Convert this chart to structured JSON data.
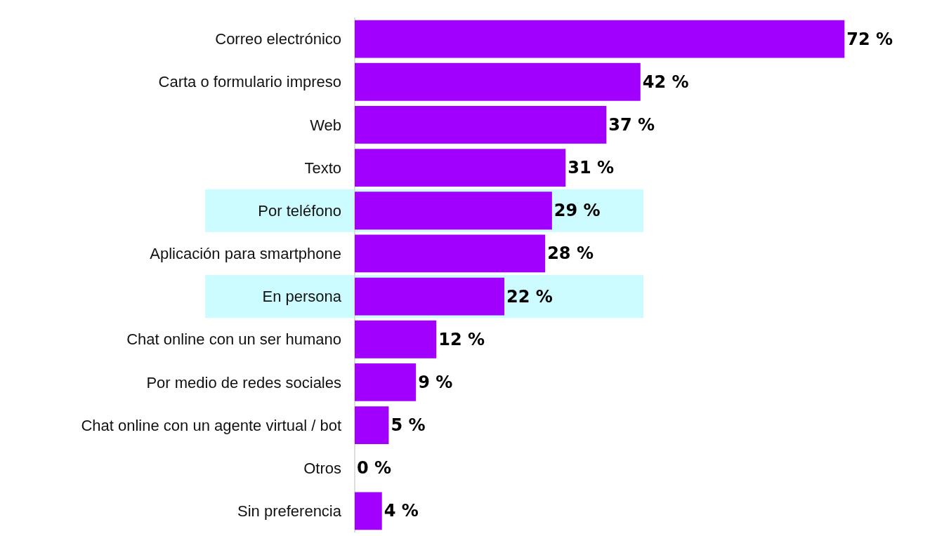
{
  "chart_data": {
    "type": "bar",
    "orientation": "horizontal",
    "categories": [
      "Correo electrónico",
      "Carta o formulario impreso",
      "Web",
      "Texto",
      "Por teléfono",
      "Aplicación para smartphone",
      "En persona",
      "Chat online con un ser humano",
      "Por medio de redes sociales",
      "Chat online con un agente virtual / bot",
      "Otros",
      "Sin preferencia"
    ],
    "values": [
      72,
      42,
      37,
      31,
      29,
      28,
      22,
      12,
      9,
      5,
      0,
      4
    ],
    "value_labels": [
      "72 %",
      "42 %",
      "37 %",
      "31 %",
      "29 %",
      "28 %",
      "22 %",
      "12 %",
      "9 %",
      "5 %",
      "0 %",
      "4 %"
    ],
    "color": "#a100ff",
    "bands": [
      {
        "axis": "y",
        "from": "Por teléfono",
        "to": "Por teléfono",
        "color": "#ccfcff"
      },
      {
        "axis": "y",
        "from": "En persona",
        "to": "En persona",
        "color": "#ccfcff"
      }
    ],
    "grid": false,
    "legend": false
  }
}
